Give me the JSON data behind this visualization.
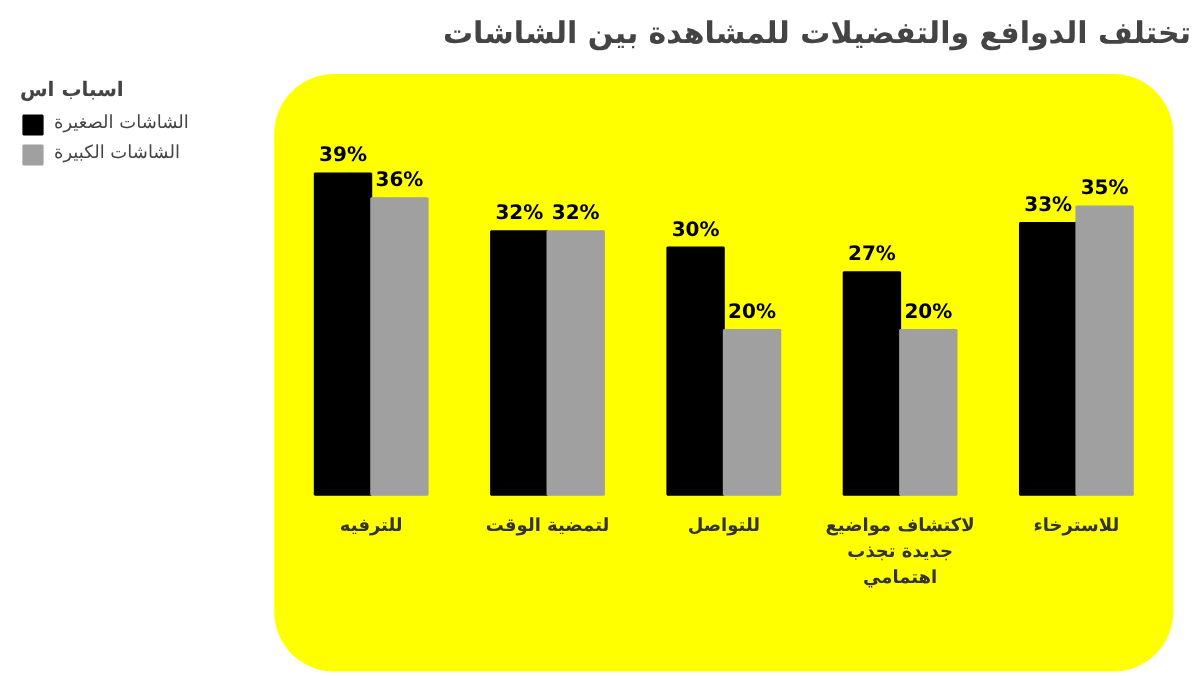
{
  "chart_data": {
    "type": "bar",
    "title": "تختلف الدوافع والتفضيلات للمشاهدة بين الشاشات",
    "legend_title": "اسباب اس",
    "categories": [
      "للترفيه",
      "لتمضية الوقت",
      "للتواصل",
      "لاكتشاف مواضيع جديدة تجذب اهتمامي",
      "للاسترخاء"
    ],
    "series": [
      {
        "name": "الشاشات الصغيرة",
        "color": "#000000",
        "values": [
          39,
          32,
          30,
          27,
          33
        ],
        "value_labels": [
          "39%",
          "32%",
          "30%",
          "27%",
          "33%"
        ]
      },
      {
        "name": "الشاشات الكبيرة",
        "color": "#a0a0a0",
        "values": [
          36,
          32,
          20,
          20,
          35
        ],
        "value_labels": [
          "36%",
          "32%",
          "20%",
          "20%",
          "35%"
        ]
      }
    ],
    "legend": "top left"
  }
}
